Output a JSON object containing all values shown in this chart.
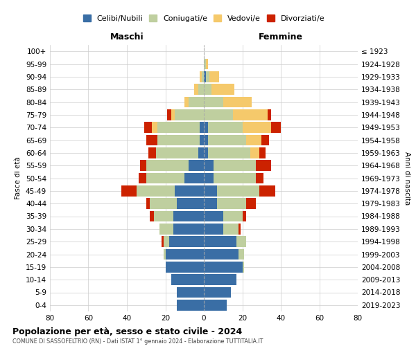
{
  "age_groups": [
    "0-4",
    "5-9",
    "10-14",
    "15-19",
    "20-24",
    "25-29",
    "30-34",
    "35-39",
    "40-44",
    "45-49",
    "50-54",
    "55-59",
    "60-64",
    "65-69",
    "70-74",
    "75-79",
    "80-84",
    "85-89",
    "90-94",
    "95-99",
    "100+"
  ],
  "birth_years": [
    "2019-2023",
    "2014-2018",
    "2009-2013",
    "2004-2008",
    "1999-2003",
    "1994-1998",
    "1989-1993",
    "1984-1988",
    "1979-1983",
    "1974-1978",
    "1969-1973",
    "1964-1968",
    "1959-1963",
    "1954-1958",
    "1949-1953",
    "1944-1948",
    "1939-1943",
    "1934-1938",
    "1929-1933",
    "1924-1928",
    "≤ 1923"
  ],
  "maschi": {
    "celibi": [
      14,
      14,
      17,
      20,
      20,
      18,
      16,
      16,
      14,
      15,
      10,
      8,
      3,
      2,
      2,
      0,
      0,
      0,
      0,
      0,
      0
    ],
    "coniugati": [
      0,
      0,
      0,
      0,
      1,
      3,
      7,
      10,
      14,
      20,
      20,
      22,
      22,
      22,
      22,
      15,
      8,
      3,
      1,
      0,
      0
    ],
    "vedovi": [
      0,
      0,
      0,
      0,
      0,
      0,
      0,
      0,
      0,
      0,
      0,
      0,
      0,
      0,
      3,
      2,
      2,
      2,
      1,
      0,
      0
    ],
    "divorziati": [
      0,
      0,
      0,
      0,
      0,
      1,
      0,
      2,
      2,
      8,
      4,
      3,
      4,
      6,
      4,
      2,
      0,
      0,
      0,
      0,
      0
    ]
  },
  "femmine": {
    "nubili": [
      12,
      14,
      17,
      20,
      18,
      17,
      10,
      10,
      7,
      7,
      5,
      5,
      2,
      2,
      2,
      0,
      0,
      0,
      1,
      0,
      0
    ],
    "coniugate": [
      0,
      0,
      0,
      1,
      3,
      5,
      8,
      10,
      15,
      22,
      22,
      22,
      22,
      20,
      18,
      15,
      10,
      4,
      2,
      1,
      0
    ],
    "vedove": [
      0,
      0,
      0,
      0,
      0,
      0,
      0,
      0,
      0,
      0,
      0,
      0,
      5,
      8,
      15,
      18,
      15,
      12,
      5,
      1,
      0
    ],
    "divorziate": [
      0,
      0,
      0,
      0,
      0,
      0,
      1,
      2,
      5,
      8,
      4,
      8,
      3,
      4,
      5,
      2,
      0,
      0,
      0,
      0,
      0
    ]
  },
  "colors": {
    "celibi_nubili": "#3A6EA5",
    "coniugati": "#BFCF9F",
    "vedovi": "#F5C96B",
    "divorziati": "#CC2200"
  },
  "xlim": 80,
  "title": "Popolazione per età, sesso e stato civile - 2024",
  "subtitle": "COMUNE DI SASSOFELTRIO (RN) - Dati ISTAT 1° gennaio 2024 - Elaborazione TUTTITALIA.IT",
  "xlabel_left": "Maschi",
  "xlabel_right": "Femmine",
  "ylabel_left": "Fasce di età",
  "ylabel_right": "Anni di nascita",
  "legend_labels": [
    "Celibi/Nubili",
    "Coniugati/e",
    "Vedovi/e",
    "Divorziati/e"
  ]
}
